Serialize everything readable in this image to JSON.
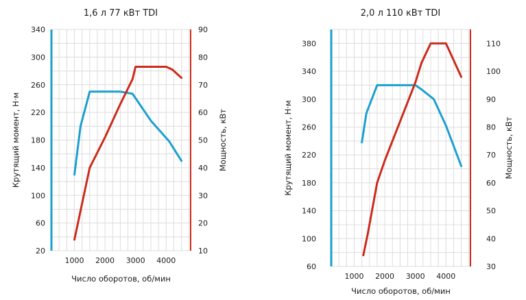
{
  "chart_data": [
    {
      "type": "line",
      "title": "1,6 л 77 кВт TDI",
      "xlabel": "Число оборотов, об/мин",
      "ylabel_left": "Крутящий момент, Н·м",
      "ylabel_right": "Мощность, кВт",
      "xlim": [
        250,
        4800
      ],
      "ylim_left": [
        20,
        340
      ],
      "ylim_right": [
        10,
        90
      ],
      "xticks": [
        1000,
        2000,
        3000,
        4000
      ],
      "yticks_left": [
        20,
        60,
        100,
        140,
        180,
        220,
        260,
        300,
        340
      ],
      "yticks_right": [
        10,
        20,
        30,
        40,
        50,
        60,
        70,
        80,
        90
      ],
      "grid": true,
      "series": [
        {
          "axis": "left",
          "color": "#1a9fd0",
          "points": [
            [
              1000,
              130
            ],
            [
              1200,
              200
            ],
            [
              1500,
              250
            ],
            [
              2000,
              250
            ],
            [
              2500,
              250
            ],
            [
              2900,
              247
            ],
            [
              3500,
              208
            ],
            [
              4100,
              178
            ],
            [
              4500,
              150
            ]
          ]
        },
        {
          "axis": "right",
          "color": "#cc2a1a",
          "points": [
            [
              1000,
              14
            ],
            [
              1500,
              40
            ],
            [
              2000,
              51
            ],
            [
              2500,
              63
            ],
            [
              2900,
              72
            ],
            [
              3000,
              76.5
            ],
            [
              4000,
              76.5
            ],
            [
              4200,
              75.5
            ],
            [
              4500,
              72.5
            ]
          ]
        }
      ]
    },
    {
      "type": "line",
      "title": "2,0 л 110 кВт TDI",
      "xlabel": "Число оборотов, об/мин",
      "ylabel_left": "Крутящий момент, Н·м",
      "ylabel_right": "Мощность, кВт",
      "xlim": [
        250,
        4800
      ],
      "ylim_left": [
        60,
        400
      ],
      "ylim_right": [
        30,
        115
      ],
      "xticks": [
        1000,
        2000,
        3000,
        4000
      ],
      "yticks_left": [
        60,
        100,
        140,
        180,
        220,
        260,
        300,
        340,
        380
      ],
      "yticks_right": [
        30,
        40,
        50,
        60,
        70,
        80,
        90,
        100,
        110
      ],
      "grid": true,
      "series": [
        {
          "axis": "left",
          "color": "#1a9fd0",
          "points": [
            [
              1250,
              238
            ],
            [
              1400,
              280
            ],
            [
              1750,
              320
            ],
            [
              2500,
              320
            ],
            [
              3000,
              320
            ],
            [
              3200,
              314
            ],
            [
              3600,
              300
            ],
            [
              4000,
              262
            ],
            [
              4500,
              204
            ]
          ]
        },
        {
          "axis": "right",
          "color": "#cc2a1a",
          "points": [
            [
              1300,
              34
            ],
            [
              1450,
              42
            ],
            [
              1750,
              60
            ],
            [
              2000,
              68
            ],
            [
              2500,
              82
            ],
            [
              3000,
              96
            ],
            [
              3200,
              103
            ],
            [
              3500,
              110
            ],
            [
              4000,
              110
            ],
            [
              4500,
              98
            ]
          ]
        }
      ]
    }
  ]
}
